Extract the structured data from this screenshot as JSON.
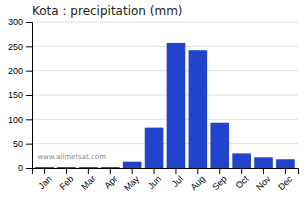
{
  "chart_data": {
    "type": "bar",
    "title": "Kota : precipitation (mm)",
    "categories": [
      "Jan",
      "Feb",
      "Mar",
      "Apr",
      "May",
      "Jun",
      "Jul",
      "Aug",
      "Sep",
      "Oct",
      "Nov",
      "Dec"
    ],
    "values": [
      2,
      2,
      2,
      2,
      13,
      83,
      257,
      242,
      93,
      30,
      22,
      18
    ],
    "color": "#2244cc",
    "ylim": [
      0,
      300
    ],
    "yticks": [
      0,
      50,
      100,
      150,
      200,
      250,
      300
    ],
    "grid": true,
    "annotations": [
      "www.allmetsat.com"
    ]
  }
}
